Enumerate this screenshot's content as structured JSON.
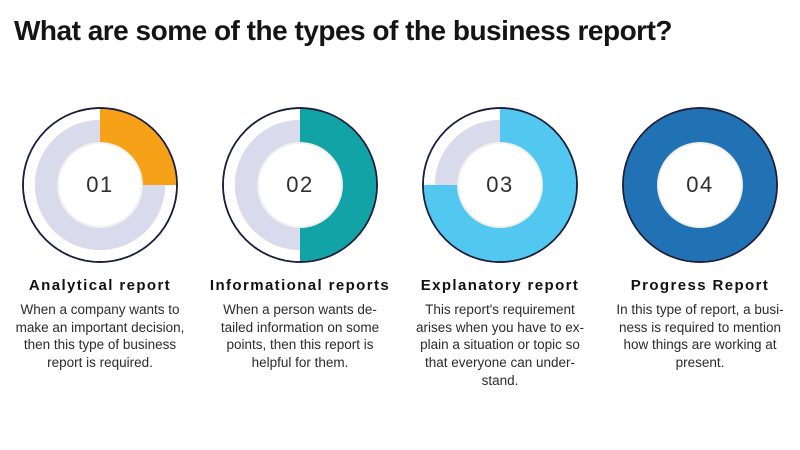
{
  "title": "What are some of the types of the business report?",
  "colors": {
    "outline": "#1B1F3E",
    "ring": "#D9DBED",
    "inner_edge": "#F2F1ED",
    "orange": "#F6A118",
    "teal": "#11A3A6",
    "sky": "#52C7EF",
    "blue": "#2072B5"
  },
  "items": [
    {
      "number": "01",
      "percent": 25,
      "color": "#F6A118",
      "heading": "Analytical report",
      "body": "When a company wants to\nmake an important decision,\nthen this type of business\nreport is required."
    },
    {
      "number": "02",
      "percent": 50,
      "color": "#11A3A6",
      "heading": "Informational reports",
      "body": "When a person wants de-\ntailed information on some\npoints, then this report is\nhelpful for them."
    },
    {
      "number": "03",
      "percent": 75,
      "color": "#52C7EF",
      "heading": "Explanatory report",
      "body": "This report's requirement\narises when you have to ex-\nplain a situation or topic so\nthat everyone can under-\nstand."
    },
    {
      "number": "04",
      "percent": 100,
      "color": "#2072B5",
      "heading": "Progress Report",
      "body": "In this type of report, a busi-\nness is required to mention\nhow things are working at\npresent."
    }
  ]
}
